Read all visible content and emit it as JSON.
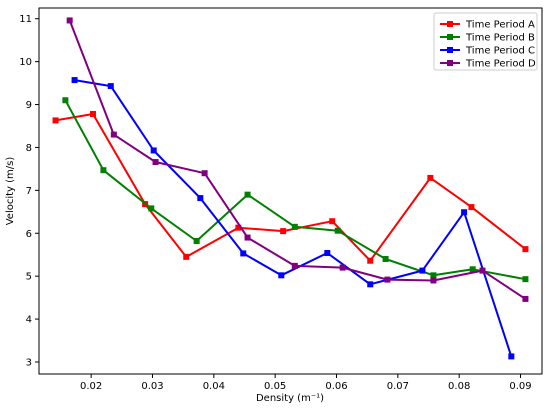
{
  "chart_data": {
    "type": "line",
    "xlabel": "Density (m⁻¹)",
    "ylabel": "Velocity (m/s)",
    "xlim": [
      0.0115,
      0.0935
    ],
    "ylim": [
      2.72,
      11.25
    ],
    "xticks": [
      0.02,
      0.03,
      0.04,
      0.05,
      0.06,
      0.07,
      0.08,
      0.09
    ],
    "xtick_labels": [
      "0.02",
      "0.03",
      "0.04",
      "0.05",
      "0.06",
      "0.07",
      "0.08",
      "0.09"
    ],
    "yticks": [
      3,
      4,
      5,
      6,
      7,
      8,
      9,
      10,
      11
    ],
    "ytick_labels": [
      "3",
      "4",
      "5",
      "6",
      "7",
      "8",
      "9",
      "10",
      "11"
    ],
    "grid": false,
    "legend_position": "top-right",
    "series": [
      {
        "name": "Time Period A",
        "color": "#ff0000",
        "x": [
          0.0142,
          0.0203,
          0.0288,
          0.0355,
          0.044,
          0.0513,
          0.0593,
          0.0655,
          0.0753,
          0.082,
          0.0908
        ],
        "y": [
          8.63,
          8.78,
          6.68,
          5.45,
          6.13,
          6.05,
          6.28,
          5.36,
          7.29,
          6.61,
          5.63
        ]
      },
      {
        "name": "Time Period B",
        "color": "#008000",
        "x": [
          0.0158,
          0.022,
          0.0298,
          0.0372,
          0.0455,
          0.0532,
          0.0602,
          0.068,
          0.0758,
          0.0822,
          0.0908
        ],
        "y": [
          9.1,
          7.47,
          6.58,
          5.82,
          6.9,
          6.15,
          6.06,
          5.4,
          5.02,
          5.16,
          4.93
        ]
      },
      {
        "name": "Time Period C",
        "color": "#0000ff",
        "x": [
          0.0173,
          0.0232,
          0.0302,
          0.0378,
          0.0448,
          0.051,
          0.0585,
          0.0655,
          0.074,
          0.0808,
          0.0885
        ],
        "y": [
          9.57,
          9.43,
          7.93,
          6.82,
          5.53,
          5.02,
          5.54,
          4.81,
          5.13,
          6.49,
          3.13
        ]
      },
      {
        "name": "Time Period D",
        "color": "#800080",
        "x": [
          0.0165,
          0.0237,
          0.0305,
          0.0385,
          0.0455,
          0.0532,
          0.061,
          0.0683,
          0.0758,
          0.0838,
          0.0908
        ],
        "y": [
          10.96,
          8.3,
          7.66,
          7.4,
          5.9,
          5.24,
          5.2,
          4.92,
          4.9,
          5.13,
          4.47
        ]
      }
    ]
  }
}
